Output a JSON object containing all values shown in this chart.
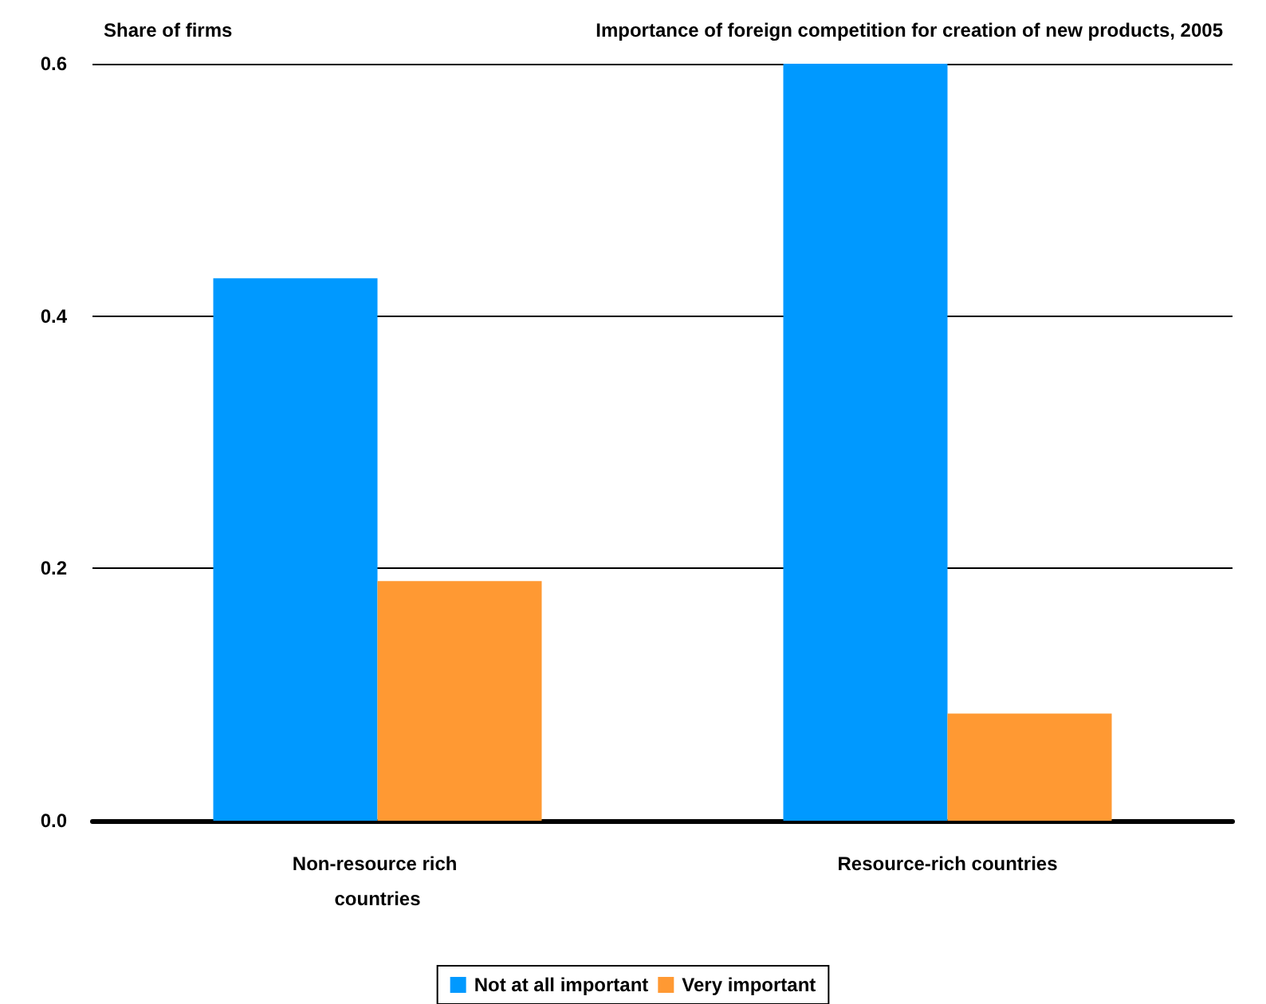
{
  "chart_data": {
    "type": "bar",
    "title": "Importance of foreign competition for creation of new products, 2005",
    "ylabel": "Share of firms",
    "categories": [
      "Non-resource rich countries",
      "Resource-rich countries"
    ],
    "series": [
      {
        "name": "Not at all important",
        "color": "#0099ff",
        "values": [
          0.43,
          0.6
        ]
      },
      {
        "name": "Very important",
        "color": "#ff9933",
        "values": [
          0.19,
          0.085
        ]
      }
    ],
    "ylim": [
      0,
      0.6
    ],
    "yticks": [
      {
        "value": 0,
        "label": "0.0"
      },
      {
        "value": 0.2,
        "label": "0.2"
      },
      {
        "value": 0.4,
        "label": "0.4"
      },
      {
        "value": 0.6,
        "label": "0.6"
      }
    ],
    "grid": "y",
    "legend": "bottom"
  }
}
